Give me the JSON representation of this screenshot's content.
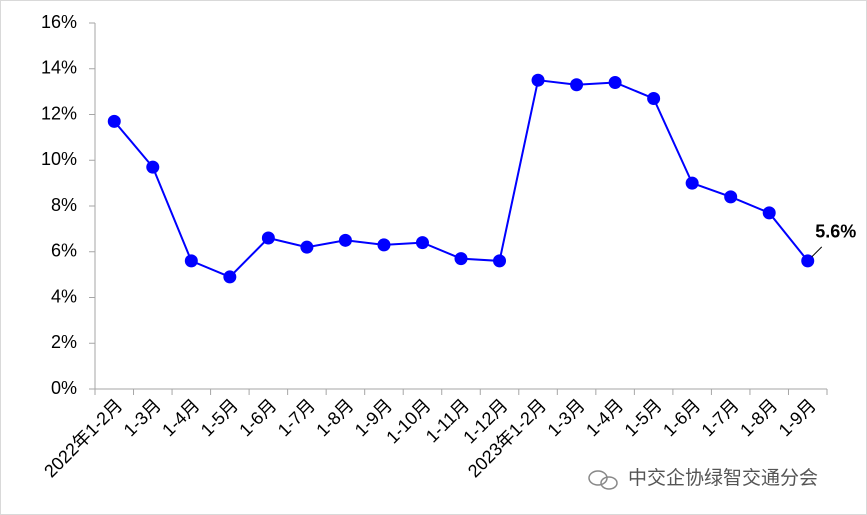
{
  "chart_data": {
    "type": "line",
    "categories": [
      "2022年1-2月",
      "1-3月",
      "1-4月",
      "1-5月",
      "1-6月",
      "1-7月",
      "1-8月",
      "1-9月",
      "1-10月",
      "1-11月",
      "1-12月",
      "2023年1-2月",
      "1-3月",
      "1-4月",
      "1-5月",
      "1-6月",
      "1-7月",
      "1-8月",
      "1-9月"
    ],
    "series": [
      {
        "color": "#0000ff",
        "values": [
          11.7,
          9.7,
          5.6,
          4.9,
          6.6,
          6.2,
          6.5,
          6.3,
          6.4,
          5.7,
          5.6,
          13.5,
          13.3,
          13.4,
          12.7,
          9.0,
          8.4,
          7.7,
          5.6
        ],
        "value_labels": [
          null,
          null,
          null,
          null,
          null,
          null,
          null,
          null,
          null,
          null,
          null,
          null,
          null,
          null,
          null,
          null,
          null,
          null,
          "5.6%"
        ]
      }
    ],
    "ylim": [
      0,
      16
    ],
    "yticks": [
      {
        "value": 0,
        "label": "0%"
      },
      {
        "value": 2,
        "label": "2%"
      },
      {
        "value": 4,
        "label": "4%"
      },
      {
        "value": 6,
        "label": "6%"
      },
      {
        "value": 8,
        "label": "8%"
      },
      {
        "value": 10,
        "label": "10%"
      },
      {
        "value": 12,
        "label": "12%"
      },
      {
        "value": 14,
        "label": "14%"
      },
      {
        "value": 16,
        "label": "16%"
      }
    ],
    "grid": false,
    "watermark": "中交企协绿智交通分会"
  }
}
